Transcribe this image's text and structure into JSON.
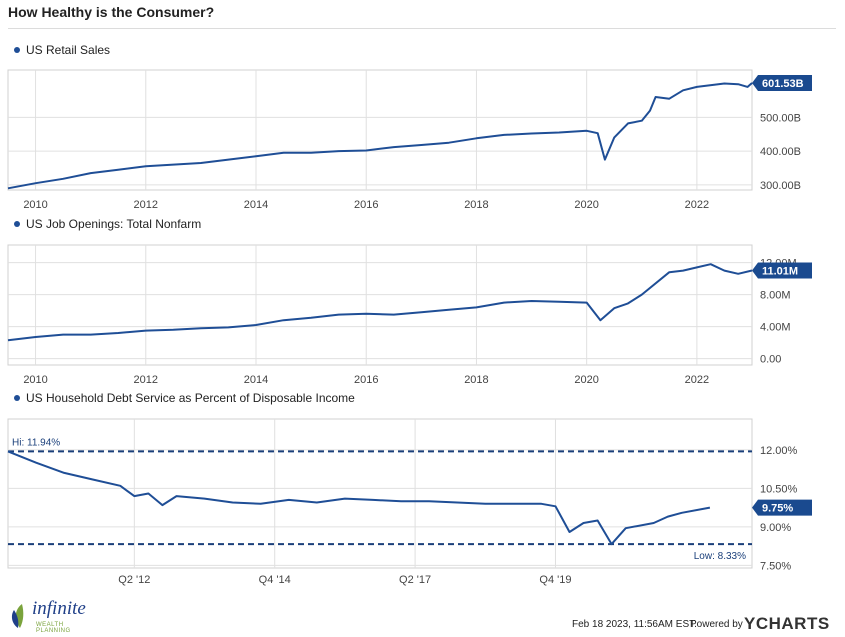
{
  "page_title": "How Healthy is the Consumer?",
  "footer": {
    "timestamp": "Feb 18 2023, 11:56AM EST.",
    "powered_by": "Powered by",
    "brand": "YCHARTS",
    "logo_name": "infinite",
    "logo_sub": "WEALTH PLANNING"
  },
  "colors": {
    "series": "#1f4e96",
    "grid": "#e0e0e0",
    "label_bg": "#1a4a8f"
  },
  "chart_data": [
    {
      "type": "line",
      "series": [
        {
          "name": "US Retail Sales",
          "x": [
            2009.5,
            2010.0,
            2010.5,
            2011.0,
            2011.5,
            2012.0,
            2012.5,
            2013.0,
            2013.5,
            2014.0,
            2014.5,
            2015.0,
            2015.5,
            2016.0,
            2016.5,
            2017.0,
            2017.5,
            2018.0,
            2018.5,
            2019.0,
            2019.5,
            2020.0,
            2020.2,
            2020.33,
            2020.5,
            2020.75,
            2021.0,
            2021.15,
            2021.25,
            2021.5,
            2021.75,
            2022.0,
            2022.5,
            2022.75,
            2022.92,
            2023.0
          ],
          "values": [
            290,
            305,
            318,
            335,
            345,
            355,
            360,
            365,
            375,
            385,
            395,
            395,
            400,
            402,
            412,
            418,
            425,
            438,
            448,
            452,
            455,
            460,
            453,
            375,
            440,
            482,
            490,
            520,
            560,
            555,
            580,
            590,
            600,
            598,
            590,
            601.53
          ]
        }
      ],
      "x_ticks": [
        "2010",
        "2012",
        "2014",
        "2016",
        "2018",
        "2020",
        "2022"
      ],
      "x_tick_values": [
        2010,
        2012,
        2014,
        2016,
        2018,
        2020,
        2022
      ],
      "y_ticks": [
        "300.00B",
        "400.00B",
        "500.00B"
      ],
      "y_tick_values": [
        300,
        400,
        500
      ],
      "xlim": [
        2009.5,
        2023.0
      ],
      "ylim": [
        285,
        640
      ],
      "last_label": "601.53B",
      "grid": true
    },
    {
      "type": "line",
      "series": [
        {
          "name": "US Job Openings: Total Nonfarm",
          "x": [
            2009.5,
            2010.0,
            2010.5,
            2011.0,
            2011.5,
            2012.0,
            2012.5,
            2013.0,
            2013.5,
            2014.0,
            2014.5,
            2015.0,
            2015.5,
            2016.0,
            2016.5,
            2017.0,
            2017.5,
            2018.0,
            2018.5,
            2019.0,
            2019.5,
            2020.0,
            2020.25,
            2020.5,
            2020.75,
            2021.0,
            2021.5,
            2021.75,
            2022.0,
            2022.25,
            2022.5,
            2022.75,
            2023.0
          ],
          "values": [
            2.3,
            2.7,
            3.0,
            3.0,
            3.2,
            3.5,
            3.6,
            3.8,
            3.9,
            4.2,
            4.8,
            5.1,
            5.5,
            5.6,
            5.5,
            5.8,
            6.1,
            6.4,
            7.0,
            7.2,
            7.1,
            7.0,
            4.8,
            6.3,
            6.9,
            8.0,
            10.8,
            11.0,
            11.4,
            11.8,
            11.0,
            10.6,
            11.01
          ]
        }
      ],
      "x_ticks": [
        "2010",
        "2012",
        "2014",
        "2016",
        "2018",
        "2020",
        "2022"
      ],
      "x_tick_values": [
        2010,
        2012,
        2014,
        2016,
        2018,
        2020,
        2022
      ],
      "y_ticks": [
        "0.00",
        "4.00M",
        "8.00M",
        "12.00M"
      ],
      "y_tick_values": [
        0,
        4,
        8,
        12
      ],
      "xlim": [
        2009.5,
        2023.0
      ],
      "ylim": [
        -0.8,
        14.2
      ],
      "last_label": "11.01M",
      "grid": true
    },
    {
      "type": "line",
      "series": [
        {
          "name": "US Household Debt Service as Percent of Disposable Income",
          "x": [
            2010.0,
            2010.5,
            2011.0,
            2011.5,
            2012.0,
            2012.25,
            2012.5,
            2012.75,
            2013.0,
            2013.5,
            2014.0,
            2014.5,
            2015.0,
            2015.5,
            2016.0,
            2016.5,
            2017.0,
            2017.5,
            2018.0,
            2018.5,
            2019.0,
            2019.5,
            2019.75,
            2020.0,
            2020.25,
            2020.5,
            2020.75,
            2021.0,
            2021.5,
            2021.75,
            2022.0,
            2022.5
          ],
          "values": [
            11.94,
            11.5,
            11.1,
            10.85,
            10.6,
            10.2,
            10.3,
            9.85,
            10.2,
            10.1,
            9.95,
            9.9,
            10.05,
            9.95,
            10.1,
            10.05,
            10.0,
            10.0,
            9.95,
            9.9,
            9.9,
            9.9,
            9.8,
            8.8,
            9.15,
            9.25,
            8.33,
            8.95,
            9.15,
            9.4,
            9.55,
            9.75
          ]
        }
      ],
      "x_ticks": [
        "Q2 '12",
        "Q4 '14",
        "Q2 '17",
        "Q4 '19"
      ],
      "x_tick_values": [
        2012.25,
        2014.75,
        2017.25,
        2019.75
      ],
      "y_ticks": [
        "7.50%",
        "9.00%",
        "10.50%",
        "12.00%"
      ],
      "y_tick_values": [
        7.5,
        9.0,
        10.5,
        12.0
      ],
      "xlim": [
        2010.0,
        2023.25
      ],
      "ylim": [
        7.4,
        13.2
      ],
      "last_label": "9.75%",
      "hi": {
        "label": "Hi: 11.94%",
        "value": 11.94
      },
      "low": {
        "label": "Low: 8.33%",
        "value": 8.33
      },
      "grid": true
    }
  ]
}
